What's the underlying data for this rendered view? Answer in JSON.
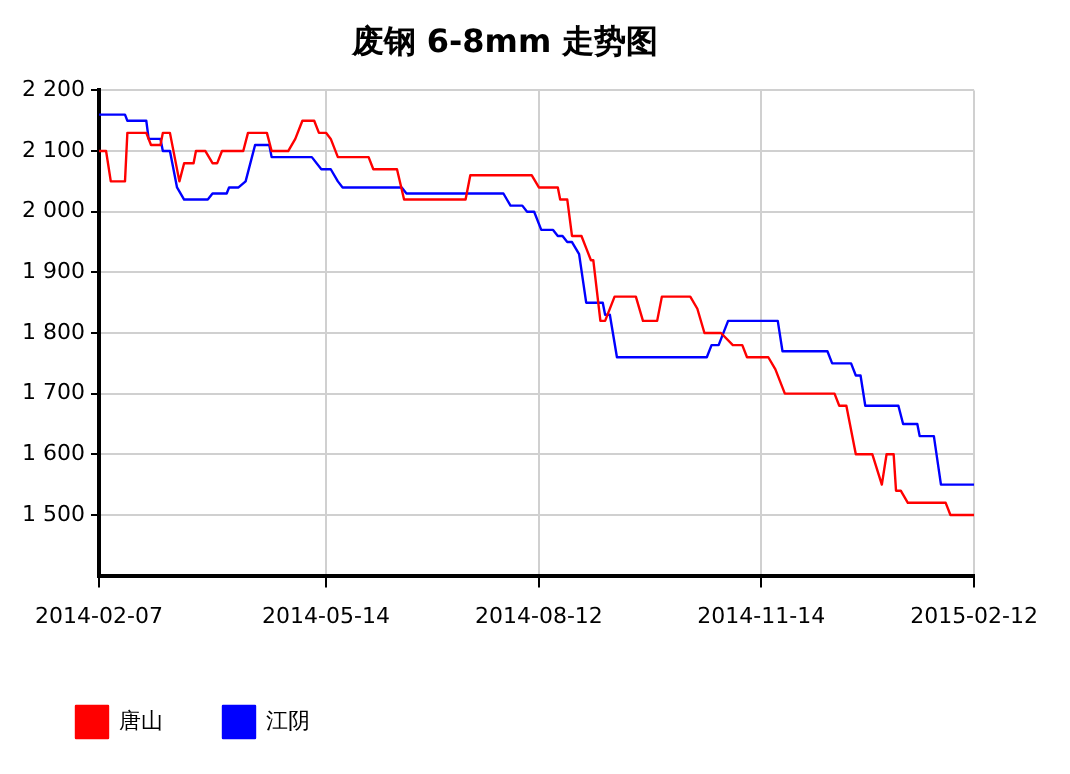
{
  "chart_data": {
    "type": "line",
    "title": "废钢 6-8mm 走势图",
    "series": [
      {
        "name": "唐山",
        "color": "#ff0000",
        "x": [
          "2014-02-07",
          "2014-02-10",
          "2014-02-12",
          "2014-02-18",
          "2014-02-19",
          "2014-02-27",
          "2014-03-01",
          "2014-03-05",
          "2014-03-06",
          "2014-03-09",
          "2014-03-13",
          "2014-03-15",
          "2014-03-19",
          "2014-03-20",
          "2014-03-24",
          "2014-03-27",
          "2014-03-29",
          "2014-03-31",
          "2014-04-09",
          "2014-04-11",
          "2014-04-19",
          "2014-04-21",
          "2014-04-28",
          "2014-05-01",
          "2014-05-04",
          "2014-05-09",
          "2014-05-11",
          "2014-05-14",
          "2014-05-16",
          "2014-05-19",
          "2014-06-01",
          "2014-06-03",
          "2014-06-13",
          "2014-06-16",
          "2014-07-12",
          "2014-07-14",
          "2014-08-09",
          "2014-08-12",
          "2014-08-20",
          "2014-08-21",
          "2014-08-24",
          "2014-08-26",
          "2014-08-30",
          "2014-09-01",
          "2014-09-03",
          "2014-09-04",
          "2014-09-07",
          "2014-09-09",
          "2014-09-13",
          "2014-09-22",
          "2014-09-25",
          "2014-10-01",
          "2014-10-03",
          "2014-10-15",
          "2014-10-18",
          "2014-10-21",
          "2014-10-28",
          "2014-11-02",
          "2014-11-06",
          "2014-11-08",
          "2014-11-17",
          "2014-11-20",
          "2014-11-24",
          "2014-12-15",
          "2014-12-17",
          "2014-12-20",
          "2014-12-24",
          "2014-12-31",
          "2015-01-04",
          "2015-01-06",
          "2015-01-09",
          "2015-01-10",
          "2015-01-12",
          "2015-01-15",
          "2015-01-31",
          "2015-02-02",
          "2015-02-12"
        ],
        "values": [
          2100,
          2100,
          2050,
          2050,
          2130,
          2130,
          2110,
          2110,
          2130,
          2130,
          2050,
          2080,
          2080,
          2100,
          2100,
          2080,
          2080,
          2100,
          2100,
          2130,
          2130,
          2100,
          2100,
          2120,
          2150,
          2150,
          2130,
          2130,
          2120,
          2090,
          2090,
          2070,
          2070,
          2020,
          2020,
          2060,
          2060,
          2040,
          2040,
          2020,
          2020,
          1960,
          1960,
          1940,
          1920,
          1920,
          1820,
          1820,
          1860,
          1860,
          1820,
          1820,
          1860,
          1860,
          1840,
          1800,
          1800,
          1780,
          1780,
          1760,
          1760,
          1740,
          1700,
          1700,
          1680,
          1680,
          1600,
          1600,
          1550,
          1600,
          1600,
          1540,
          1540,
          1520,
          1520,
          1500,
          1500
        ]
      },
      {
        "name": "江阴",
        "color": "#0000ff",
        "x": [
          "2014-02-07",
          "2014-02-18",
          "2014-02-19",
          "2014-02-27",
          "2014-02-28",
          "2014-03-05",
          "2014-03-06",
          "2014-03-09",
          "2014-03-12",
          "2014-03-15",
          "2014-03-25",
          "2014-03-27",
          "2014-04-02",
          "2014-04-03",
          "2014-04-07",
          "2014-04-10",
          "2014-04-14",
          "2014-04-20",
          "2014-04-21",
          "2014-05-08",
          "2014-05-12",
          "2014-05-16",
          "2014-05-19",
          "2014-05-21",
          "2014-06-15",
          "2014-06-17",
          "2014-07-28",
          "2014-07-31",
          "2014-08-05",
          "2014-08-07",
          "2014-08-10",
          "2014-08-13",
          "2014-08-18",
          "2014-08-20",
          "2014-08-22",
          "2014-08-24",
          "2014-08-26",
          "2014-08-29",
          "2014-09-01",
          "2014-09-08",
          "2014-09-09",
          "2014-09-11",
          "2014-09-14",
          "2014-10-22",
          "2014-10-24",
          "2014-10-27",
          "2014-10-31",
          "2014-11-21",
          "2014-11-23",
          "2014-12-12",
          "2014-12-14",
          "2014-12-22",
          "2014-12-24",
          "2014-12-26",
          "2014-12-28",
          "2015-01-11",
          "2015-01-13",
          "2015-01-19",
          "2015-01-20",
          "2015-01-26",
          "2015-01-29",
          "2015-02-12"
        ],
        "values": [
          2160,
          2160,
          2150,
          2150,
          2120,
          2120,
          2100,
          2100,
          2040,
          2020,
          2020,
          2030,
          2030,
          2040,
          2040,
          2050,
          2110,
          2110,
          2090,
          2090,
          2070,
          2070,
          2050,
          2040,
          2040,
          2030,
          2030,
          2010,
          2010,
          2000,
          2000,
          1970,
          1970,
          1960,
          1960,
          1950,
          1950,
          1930,
          1850,
          1850,
          1830,
          1830,
          1760,
          1760,
          1780,
          1780,
          1820,
          1820,
          1770,
          1770,
          1750,
          1750,
          1730,
          1730,
          1680,
          1680,
          1650,
          1650,
          1630,
          1630,
          1550,
          1550
        ]
      }
    ],
    "xlim": [
      "2014-02-07",
      "2015-02-12"
    ],
    "xticks": [
      "2014-02-07",
      "2014-05-14",
      "2014-08-12",
      "2014-11-14",
      "2015-02-12"
    ],
    "ylim": [
      1400,
      2200
    ],
    "yticks": [
      {
        "value": 1500,
        "label": "1 500"
      },
      {
        "value": 1600,
        "label": "1 600"
      },
      {
        "value": 1700,
        "label": "1 700"
      },
      {
        "value": 1800,
        "label": "1 800"
      },
      {
        "value": 1900,
        "label": "1 900"
      },
      {
        "value": 2000,
        "label": "2 000"
      },
      {
        "value": 2100,
        "label": "2 100"
      },
      {
        "value": 2200,
        "label": "2 200"
      }
    ],
    "grid": true,
    "legend": "bottom left",
    "marker": "none",
    "line_style": "solid"
  }
}
